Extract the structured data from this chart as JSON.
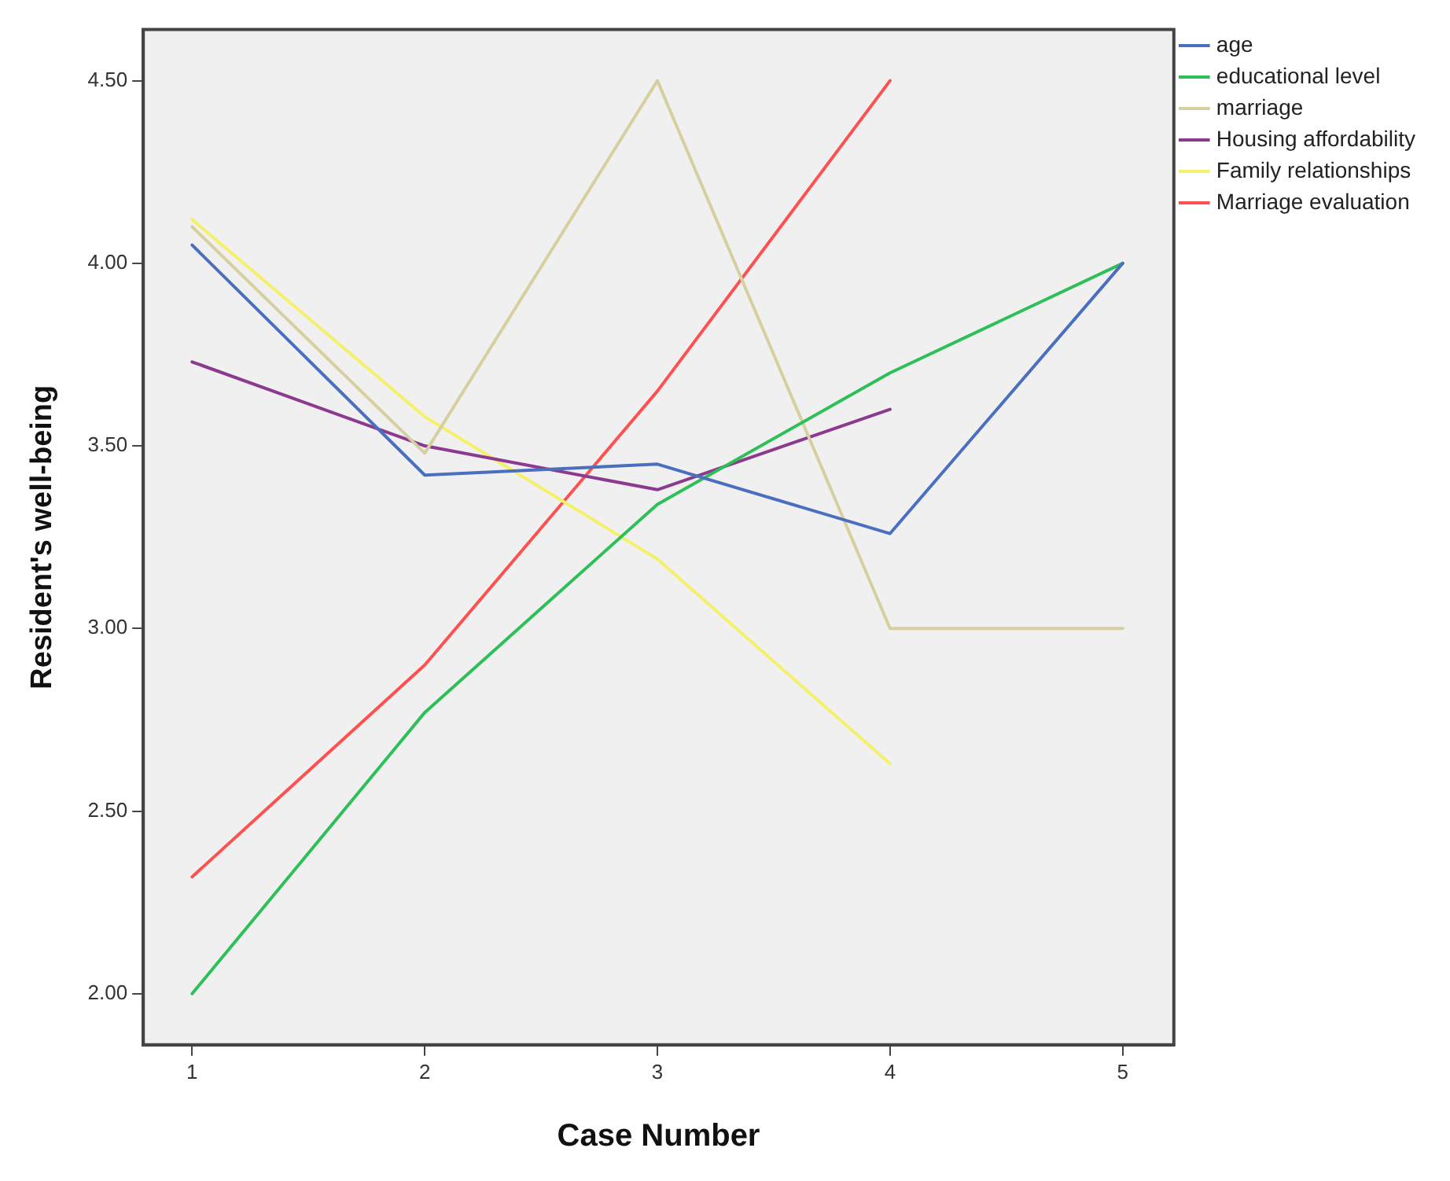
{
  "chart_data": {
    "type": "line",
    "xlabel": "Case Number",
    "ylabel": "Resident's well-being",
    "x": [
      1,
      2,
      3,
      4,
      5
    ],
    "series": [
      {
        "name": "age",
        "color": "#4a6fbf",
        "values": [
          4.05,
          3.42,
          3.45,
          3.26,
          4.0
        ]
      },
      {
        "name": "educational level",
        "color": "#2fbf59",
        "values": [
          2.0,
          2.77,
          3.34,
          3.7,
          4.0
        ]
      },
      {
        "name": "marriage",
        "color": "#d6cfa0",
        "values": [
          4.1,
          3.48,
          4.5,
          3.0,
          3.0
        ]
      },
      {
        "name": "Housing affordability",
        "color": "#8b3a8f",
        "values": [
          3.73,
          3.5,
          3.38,
          3.6,
          null
        ]
      },
      {
        "name": "Family relationships",
        "color": "#f5f06a",
        "values": [
          4.12,
          3.58,
          3.19,
          2.63,
          null
        ]
      },
      {
        "name": "Marriage evaluation",
        "color": "#ff5050",
        "values": [
          2.32,
          2.9,
          3.65,
          4.5,
          null
        ]
      }
    ],
    "xlim": [
      0.79,
      5.22
    ],
    "xticks": [
      1,
      2,
      3,
      4,
      5
    ],
    "ylim": [
      1.86,
      4.64
    ],
    "yticks": [
      {
        "value": 2,
        "label": "2.00"
      },
      {
        "value": 2.5,
        "label": "2.50"
      },
      {
        "value": 3,
        "label": "3.00"
      },
      {
        "value": 3.5,
        "label": "3.50"
      },
      {
        "value": 4,
        "label": "4.00"
      },
      {
        "value": 4.5,
        "label": "4.50"
      }
    ],
    "grid": false,
    "legend": "right",
    "marker": "none",
    "line_style": "solid"
  }
}
